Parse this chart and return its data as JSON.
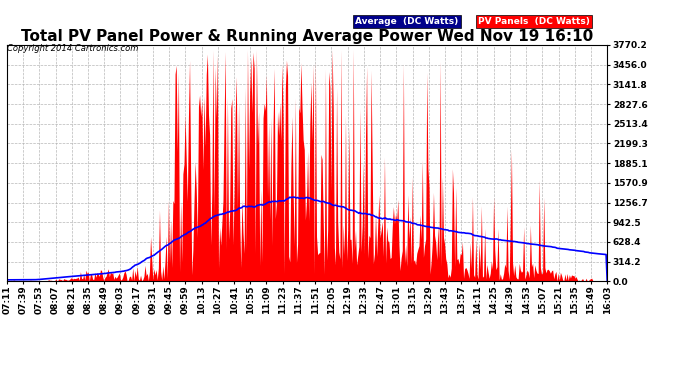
{
  "title": "Total PV Panel Power & Running Average Power Wed Nov 19 16:10",
  "copyright": "Copyright 2014 Cartronics.com",
  "legend_avg": "Average  (DC Watts)",
  "legend_pv": "PV Panels  (DC Watts)",
  "yticks": [
    0.0,
    314.2,
    628.4,
    942.5,
    1256.7,
    1570.9,
    1885.1,
    2199.3,
    2513.4,
    2827.6,
    3141.8,
    3456.0,
    3770.2
  ],
  "ymax": 3770.2,
  "bg_color": "#ffffff",
  "plot_bg_color": "#ffffff",
  "grid_color": "#b0b0b0",
  "pv_color": "#ff0000",
  "avg_color": "#0000ff",
  "title_fontsize": 11,
  "tick_fontsize": 6.5,
  "xtick_labels": [
    "07:11",
    "07:39",
    "07:53",
    "08:07",
    "08:21",
    "08:35",
    "08:49",
    "09:03",
    "09:17",
    "09:31",
    "09:45",
    "09:59",
    "10:13",
    "10:27",
    "10:41",
    "10:55",
    "11:09",
    "11:23",
    "11:37",
    "11:51",
    "12:05",
    "12:19",
    "12:33",
    "12:47",
    "13:01",
    "13:15",
    "13:29",
    "13:43",
    "13:57",
    "14:11",
    "14:25",
    "14:39",
    "14:53",
    "15:07",
    "15:21",
    "15:35",
    "15:49",
    "16:03"
  ]
}
